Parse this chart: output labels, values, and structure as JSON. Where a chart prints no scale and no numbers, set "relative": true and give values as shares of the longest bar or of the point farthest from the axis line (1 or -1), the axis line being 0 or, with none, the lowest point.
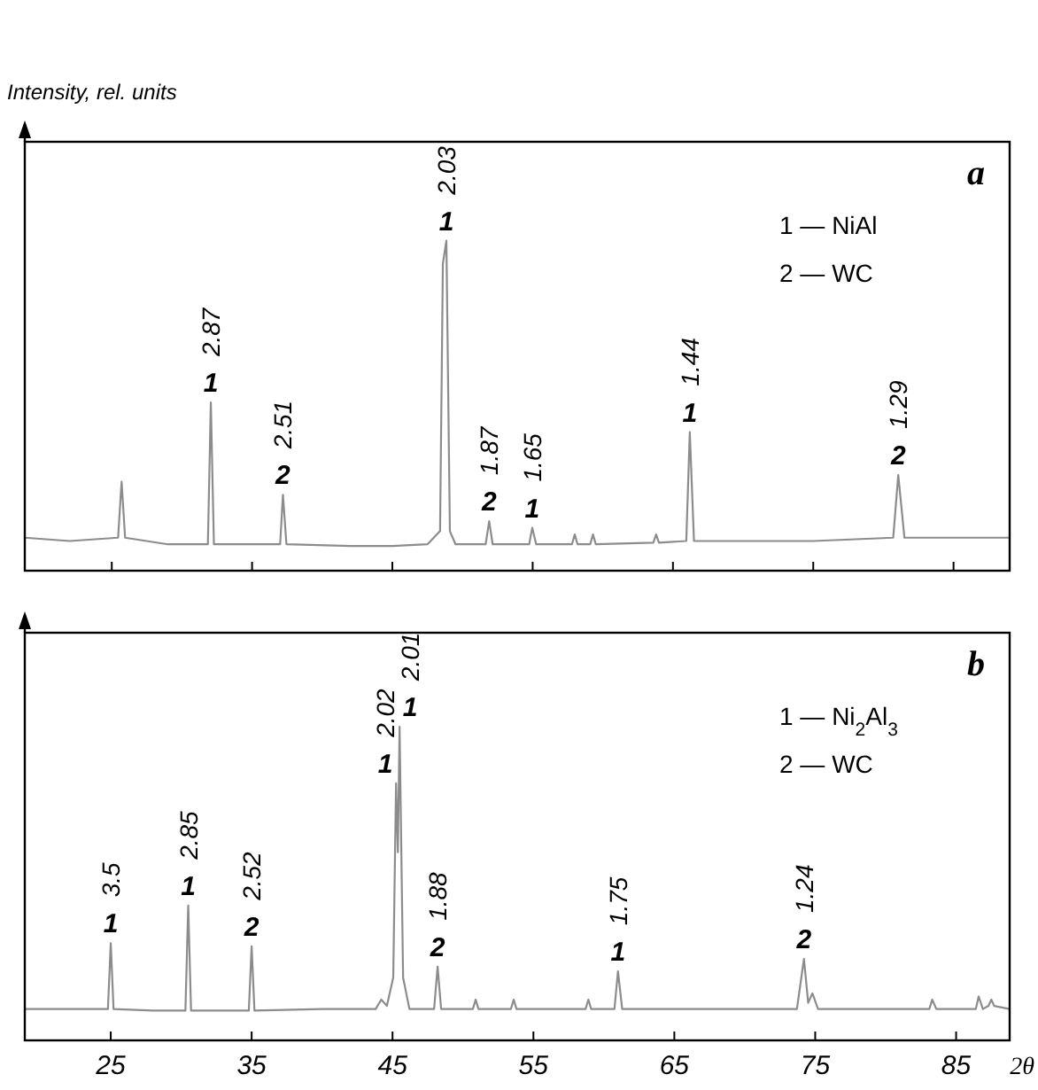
{
  "chart_data": [
    {
      "type": "line",
      "title": "a",
      "ylabel": "Intensity, rel. units",
      "relative": true,
      "xlim": [
        18.8,
        89
      ],
      "xticks": [
        25,
        35,
        45,
        55,
        65,
        75,
        85
      ],
      "tick_labels": false,
      "marker": "none",
      "line_style": "solid",
      "series": [
        {
          "color": "#8c8c8c",
          "x": [
            18.8,
            22,
            25.45,
            25.7,
            25.95,
            29,
            31.85,
            32.06,
            32.28,
            35,
            37.0,
            37.2,
            37.45,
            42,
            45,
            47.5,
            48.4,
            48.6,
            48.85,
            49.1,
            49.5,
            51.65,
            51.9,
            52.15,
            54.75,
            54.97,
            55.25,
            57.8,
            58.0,
            58.2,
            59.1,
            59.3,
            59.5,
            63.6,
            63.8,
            64.0,
            65.95,
            66.2,
            66.5,
            70,
            75,
            80.7,
            81.06,
            81.5,
            85,
            89
          ],
          "values": [
            0.1,
            0.09,
            0.1,
            0.27,
            0.1,
            0.08,
            0.08,
            0.51,
            0.08,
            0.08,
            0.08,
            0.23,
            0.08,
            0.075,
            0.075,
            0.08,
            0.12,
            0.93,
            1.0,
            0.12,
            0.08,
            0.08,
            0.15,
            0.08,
            0.08,
            0.13,
            0.08,
            0.08,
            0.11,
            0.08,
            0.08,
            0.11,
            0.08,
            0.085,
            0.11,
            0.085,
            0.09,
            0.42,
            0.09,
            0.09,
            0.09,
            0.1,
            0.29,
            0.1,
            0.1,
            0.1
          ]
        }
      ],
      "annotations": [
        "1 — NiAl",
        "2 — WC",
        {
          "text": "1",
          "x": 32.06,
          "y": 0.51
        },
        {
          "text": "2.87",
          "x": 32.06,
          "y": 0.51
        },
        {
          "text": "2",
          "x": 37.2,
          "y": 0.23
        },
        {
          "text": "2.51",
          "x": 37.2,
          "y": 0.23
        },
        {
          "text": "1",
          "x": 48.85,
          "y": 1.0
        },
        {
          "text": "2.03",
          "x": 48.85,
          "y": 1.0
        },
        {
          "text": "2",
          "x": 51.9,
          "y": 0.15
        },
        {
          "text": "1.87",
          "x": 51.9,
          "y": 0.15
        },
        {
          "text": "1",
          "x": 54.97,
          "y": 0.13
        },
        {
          "text": "1.65",
          "x": 54.97,
          "y": 0.13
        },
        {
          "text": "1",
          "x": 66.2,
          "y": 0.42
        },
        {
          "text": "1.44",
          "x": 66.2,
          "y": 0.42
        },
        {
          "text": "2",
          "x": 81.06,
          "y": 0.29
        },
        {
          "text": "1.29",
          "x": 81.06,
          "y": 0.29
        }
      ]
    },
    {
      "type": "line",
      "title": "b",
      "xlabel": "2θ",
      "relative": true,
      "xlim": [
        18.9,
        88.8
      ],
      "xticks": [
        25,
        35,
        45,
        55,
        65,
        75,
        85
      ],
      "tick_labels": "x",
      "marker": "none",
      "line_style": "solid",
      "series": [
        {
          "color": "#8c8c8c",
          "x": [
            18.9,
            22,
            24.8,
            25.0,
            25.2,
            28,
            30.3,
            30.5,
            30.7,
            33,
            34.8,
            35.0,
            35.2,
            40,
            43.8,
            44.2,
            44.6,
            45.05,
            45.25,
            45.38,
            45.5,
            45.75,
            46.2,
            47.95,
            48.2,
            48.45,
            50.7,
            50.9,
            51.1,
            53.4,
            53.6,
            53.8,
            58.7,
            58.9,
            59.1,
            60.75,
            61.0,
            61.3,
            67,
            73.7,
            74.2,
            74.5,
            74.8,
            75.2,
            80,
            83.1,
            83.3,
            83.6,
            86.4,
            86.6,
            86.9,
            87.3,
            87.5,
            87.7,
            88.8
          ],
          "values": [
            0.1,
            0.1,
            0.1,
            0.31,
            0.1,
            0.095,
            0.095,
            0.43,
            0.095,
            0.095,
            0.095,
            0.3,
            0.095,
            0.1,
            0.1,
            0.13,
            0.11,
            0.2,
            0.82,
            0.6,
            1.0,
            0.2,
            0.1,
            0.1,
            0.235,
            0.1,
            0.1,
            0.13,
            0.1,
            0.1,
            0.13,
            0.1,
            0.1,
            0.13,
            0.1,
            0.1,
            0.22,
            0.1,
            0.1,
            0.1,
            0.26,
            0.12,
            0.15,
            0.1,
            0.1,
            0.1,
            0.13,
            0.1,
            0.1,
            0.14,
            0.1,
            0.11,
            0.13,
            0.11,
            0.1
          ]
        }
      ],
      "annotations": [
        "1 — Ni$_{2}$Al$_{3}$",
        "2 — WC",
        {
          "text": "1",
          "x": 25.0,
          "y": 0.31
        },
        {
          "text": "3.5",
          "x": 25.0,
          "y": 0.31
        },
        {
          "text": "1",
          "x": 30.5,
          "y": 0.43
        },
        {
          "text": "2.85",
          "x": 30.5,
          "y": 0.43
        },
        {
          "text": "2",
          "x": 35.0,
          "y": 0.3
        },
        {
          "text": "2.52",
          "x": 35.0,
          "y": 0.3
        },
        {
          "text": "1",
          "x": 45.25,
          "y": 0.82
        },
        {
          "text": "2.02",
          "x": 45.25,
          "y": 0.82
        },
        {
          "text": "1",
          "x": 45.5,
          "y": 1.0
        },
        {
          "text": "2.01",
          "x": 45.5,
          "y": 1.0
        },
        {
          "text": "2",
          "x": 48.2,
          "y": 0.235
        },
        {
          "text": "1.88",
          "x": 48.2,
          "y": 0.235
        },
        {
          "text": "1",
          "x": 61.0,
          "y": 0.22
        },
        {
          "text": "1.75",
          "x": 61.0,
          "y": 0.22
        },
        {
          "text": "2",
          "x": 74.2,
          "y": 0.26
        },
        {
          "text": "1.24",
          "x": 74.2,
          "y": 0.26
        }
      ]
    }
  ]
}
